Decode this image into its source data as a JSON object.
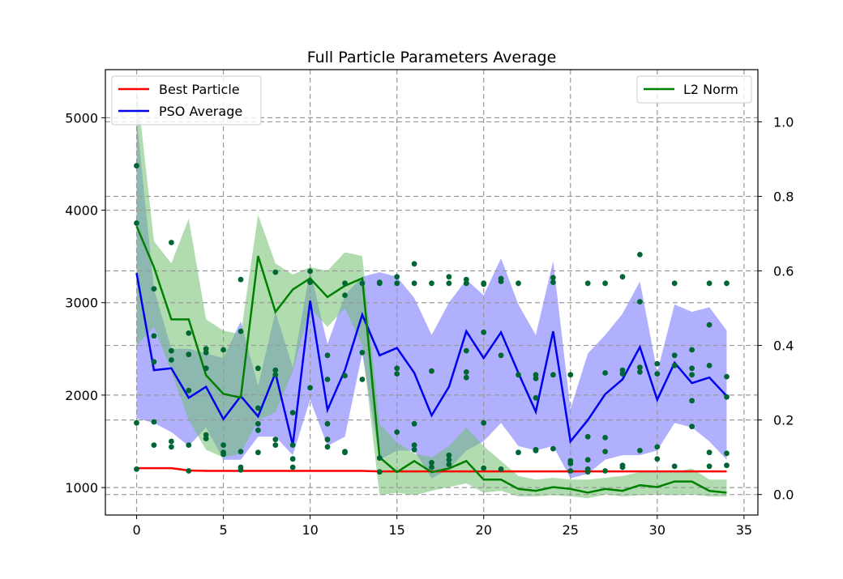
{
  "chart_data": {
    "type": "line",
    "title": "Full Particle Parameters Average",
    "xlabel": "",
    "ylabel": "",
    "x_ticks": [
      0,
      5,
      10,
      15,
      20,
      25,
      30,
      35
    ],
    "y_left_ticks": [
      1000,
      2000,
      3000,
      4000,
      5000
    ],
    "y_right_ticks": [
      "0.0",
      "0.2",
      "0.4",
      "0.6",
      "0.8",
      "1.0"
    ],
    "xlim": [
      -1.8,
      35.8
    ],
    "ylim_left": [
      703,
      5520
    ],
    "ylim_right": [
      -0.055,
      1.14
    ],
    "grid": true,
    "legend_left": [
      "Best Particle",
      "PSO Average"
    ],
    "legend_right": [
      "L2 Norm"
    ],
    "colors": {
      "best": "#ff0000",
      "pso": "#0000ee",
      "pso_band": "#7070ff",
      "l2": "#008000",
      "l2_band": "#6fbf6f",
      "points": "#006633"
    },
    "x": [
      0,
      1,
      2,
      3,
      4,
      5,
      6,
      7,
      8,
      9,
      10,
      11,
      12,
      13,
      14,
      15,
      16,
      17,
      18,
      19,
      20,
      21,
      22,
      23,
      24,
      25,
      26,
      27,
      28,
      29,
      30,
      31,
      32,
      33,
      34
    ],
    "series": [
      {
        "name": "Best Particle",
        "axis": "left",
        "values": [
          1210,
          1210,
          1210,
          1185,
          1180,
          1180,
          1180,
          1180,
          1180,
          1180,
          1180,
          1180,
          1180,
          1180,
          1175,
          1175,
          1175,
          1175,
          1175,
          1175,
          1175,
          1175,
          1175,
          1175,
          1175,
          1175,
          1175,
          1175,
          1175,
          1175,
          1175,
          1175,
          1175,
          1175,
          1175
        ]
      },
      {
        "name": "PSO Average",
        "axis": "left",
        "values": [
          3320,
          2270,
          2290,
          1970,
          2090,
          1740,
          1990,
          1770,
          2240,
          1460,
          3020,
          1840,
          2270,
          2870,
          2430,
          2510,
          2240,
          1780,
          2090,
          2690,
          2400,
          2680,
          2240,
          1820,
          2690,
          1500,
          1730,
          2010,
          2170,
          2520,
          1950,
          2350,
          2130,
          2190,
          1990
        ],
        "band_upper": [
          5000,
          3150,
          2500,
          2500,
          2450,
          2400,
          2800,
          2100,
          2900,
          2300,
          3350,
          2550,
          3080,
          3280,
          3330,
          3280,
          3050,
          2650,
          3000,
          3250,
          3080,
          3480,
          2980,
          2650,
          3450,
          1850,
          2450,
          2650,
          2880,
          3230,
          2250,
          2980,
          2900,
          2950,
          2700
        ],
        "band_lower": [
          1750,
          1700,
          1600,
          1450,
          1650,
          1300,
          1300,
          1550,
          1550,
          1350,
          1950,
          1450,
          1550,
          2450,
          1300,
          1400,
          1400,
          1100,
          1200,
          1400,
          1500,
          1700,
          1450,
          1400,
          1450,
          1100,
          1150,
          1300,
          1350,
          1350,
          1400,
          1700,
          1650,
          1500,
          1300
        ]
      },
      {
        "name": "L2 Norm",
        "axis": "right",
        "values": [
          0.72,
          0.61,
          0.47,
          0.47,
          0.32,
          0.27,
          0.26,
          0.64,
          0.49,
          0.55,
          0.58,
          0.53,
          0.56,
          0.58,
          0.1,
          0.06,
          0.09,
          0.06,
          0.07,
          0.09,
          0.04,
          0.04,
          0.015,
          0.01,
          0.02,
          0.015,
          0.005,
          0.015,
          0.01,
          0.025,
          0.02,
          0.035,
          0.035,
          0.01,
          0.005
        ],
        "band_upper": [
          1.1,
          0.68,
          0.62,
          0.74,
          0.47,
          0.44,
          0.43,
          0.75,
          0.62,
          0.59,
          0.61,
          0.6,
          0.65,
          0.64,
          0.19,
          0.14,
          0.11,
          0.1,
          0.13,
          0.18,
          0.13,
          0.09,
          0.05,
          0.04,
          0.045,
          0.04,
          0.04,
          0.045,
          0.05,
          0.06,
          0.06,
          0.06,
          0.07,
          0.04,
          0.04
        ],
        "band_lower": [
          0.4,
          0.45,
          0.33,
          0.2,
          0.12,
          0.1,
          0.11,
          0.2,
          0.22,
          0.33,
          0.5,
          0.45,
          0.5,
          0.4,
          -0.002,
          0.005,
          -0.002,
          0.01,
          0.02,
          0.03,
          0.005,
          0.01,
          -0.005,
          -0.005,
          -0.002,
          -0.005,
          -0.01,
          0.0,
          -0.005,
          -0.002,
          0.0,
          -0.002,
          0.0,
          -0.005,
          -0.005
        ]
      }
    ],
    "scatter_left": [
      [
        0,
        4480
      ],
      [
        0,
        3860
      ],
      [
        0,
        1700
      ],
      [
        0,
        1200
      ],
      [
        1,
        3150
      ],
      [
        1,
        2640
      ],
      [
        1,
        2360
      ],
      [
        1,
        1710
      ],
      [
        1,
        1460
      ],
      [
        2,
        3650
      ],
      [
        2,
        2480
      ],
      [
        2,
        2380
      ],
      [
        2,
        1500
      ],
      [
        2,
        1440
      ],
      [
        3,
        2670
      ],
      [
        3,
        2440
      ],
      [
        3,
        2050
      ],
      [
        3,
        1460
      ],
      [
        3,
        1180
      ],
      [
        4,
        2500
      ],
      [
        4,
        2460
      ],
      [
        4,
        2290
      ],
      [
        4,
        1570
      ],
      [
        4,
        1530
      ],
      [
        5,
        2490
      ],
      [
        5,
        1460
      ],
      [
        5,
        1360
      ],
      [
        5,
        1380
      ],
      [
        6,
        3250
      ],
      [
        6,
        2690
      ],
      [
        6,
        1390
      ],
      [
        6,
        1220
      ],
      [
        6,
        1190
      ],
      [
        7,
        2290
      ],
      [
        7,
        1860
      ],
      [
        7,
        1690
      ],
      [
        7,
        1620
      ],
      [
        7,
        1380
      ],
      [
        8,
        3330
      ],
      [
        8,
        2270
      ],
      [
        8,
        2220
      ],
      [
        8,
        1520
      ],
      [
        8,
        1460
      ],
      [
        9,
        1810
      ],
      [
        9,
        1460
      ],
      [
        9,
        1310
      ],
      [
        9,
        1220
      ],
      [
        10,
        3340
      ],
      [
        10,
        3220
      ],
      [
        10,
        2080
      ],
      [
        11,
        2430
      ],
      [
        11,
        2170
      ],
      [
        11,
        1690
      ],
      [
        11,
        1520
      ],
      [
        11,
        1440
      ],
      [
        12,
        3210
      ],
      [
        12,
        3080
      ],
      [
        12,
        2210
      ],
      [
        12,
        1390
      ],
      [
        12,
        1380
      ],
      [
        13,
        3210
      ],
      [
        13,
        2460
      ],
      [
        13,
        2170
      ],
      [
        14,
        3220
      ],
      [
        14,
        3210
      ],
      [
        14,
        1320
      ],
      [
        14,
        1170
      ],
      [
        15,
        3280
      ],
      [
        15,
        3210
      ],
      [
        15,
        2290
      ],
      [
        15,
        2230
      ],
      [
        15,
        1600
      ],
      [
        16,
        3420
      ],
      [
        16,
        3210
      ],
      [
        16,
        1690
      ],
      [
        16,
        1460
      ],
      [
        16,
        1410
      ],
      [
        17,
        3210
      ],
      [
        17,
        2260
      ],
      [
        17,
        1270
      ],
      [
        17,
        1220
      ],
      [
        18,
        3280
      ],
      [
        18,
        3210
      ],
      [
        18,
        1350
      ],
      [
        18,
        1300
      ],
      [
        18,
        1250
      ],
      [
        19,
        3250
      ],
      [
        19,
        3210
      ],
      [
        19,
        2480
      ],
      [
        19,
        2250
      ],
      [
        19,
        2190
      ],
      [
        20,
        3210
      ],
      [
        20,
        3200
      ],
      [
        20,
        2680
      ],
      [
        20,
        1700
      ],
      [
        20,
        1210
      ],
      [
        21,
        3260
      ],
      [
        21,
        3230
      ],
      [
        21,
        2430
      ],
      [
        21,
        1200
      ],
      [
        22,
        3210
      ],
      [
        22,
        2220
      ],
      [
        22,
        1380
      ],
      [
        23,
        2220
      ],
      [
        23,
        2180
      ],
      [
        23,
        1970
      ],
      [
        23,
        1410
      ],
      [
        23,
        1400
      ],
      [
        24,
        3270
      ],
      [
        24,
        3220
      ],
      [
        24,
        2220
      ],
      [
        24,
        1420
      ],
      [
        25,
        2220
      ],
      [
        25,
        1290
      ],
      [
        25,
        1260
      ],
      [
        25,
        1180
      ],
      [
        26,
        3210
      ],
      [
        26,
        1550
      ],
      [
        26,
        1300
      ],
      [
        26,
        1200
      ],
      [
        26,
        1170
      ],
      [
        27,
        3210
      ],
      [
        27,
        2240
      ],
      [
        27,
        1540
      ],
      [
        27,
        1390
      ],
      [
        27,
        1180
      ],
      [
        28,
        3280
      ],
      [
        28,
        2270
      ],
      [
        28,
        2230
      ],
      [
        28,
        1240
      ],
      [
        28,
        1220
      ],
      [
        29,
        3520
      ],
      [
        29,
        3010
      ],
      [
        29,
        2300
      ],
      [
        29,
        2250
      ],
      [
        29,
        1400
      ],
      [
        30,
        2340
      ],
      [
        30,
        2230
      ],
      [
        30,
        1440
      ],
      [
        30,
        1310
      ],
      [
        31,
        3210
      ],
      [
        31,
        2430
      ],
      [
        31,
        2320
      ],
      [
        31,
        1230
      ],
      [
        32,
        2490
      ],
      [
        32,
        2290
      ],
      [
        32,
        2220
      ],
      [
        32,
        1940
      ],
      [
        32,
        1660
      ],
      [
        33,
        3210
      ],
      [
        33,
        2760
      ],
      [
        33,
        2320
      ],
      [
        33,
        1380
      ],
      [
        33,
        1230
      ],
      [
        34,
        3210
      ],
      [
        34,
        2200
      ],
      [
        34,
        1980
      ],
      [
        34,
        1370
      ],
      [
        34,
        1240
      ]
    ]
  }
}
